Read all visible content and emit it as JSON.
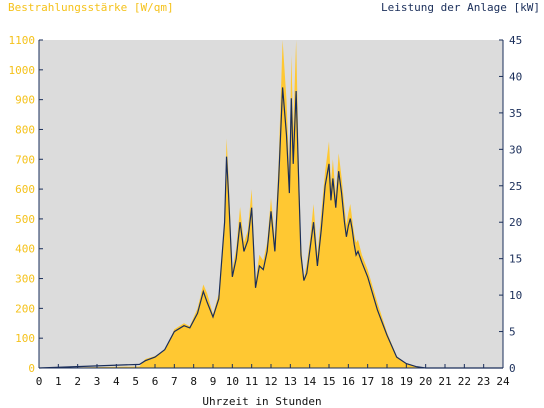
{
  "chart_data": {
    "type": "area",
    "title_left": "Bestrahlungsstärke [W/qm]",
    "title_right": "Leistung der Anlage [kW]",
    "xlabel": "Uhrzeit in Stunden",
    "xlim": [
      0,
      24
    ],
    "ylim_left": [
      0,
      1100
    ],
    "ylim_right": [
      0,
      45
    ],
    "x_ticks": [
      "0",
      "1",
      "2",
      "3",
      "4",
      "5",
      "6",
      "7",
      "8",
      "9",
      "10",
      "11",
      "12",
      "13",
      "14",
      "15",
      "16",
      "17",
      "18",
      "19",
      "20",
      "21",
      "22",
      "23",
      "24"
    ],
    "y_ticks_left": [
      "0",
      "100",
      "200",
      "300",
      "400",
      "500",
      "600",
      "700",
      "800",
      "900",
      "1000",
      "1100"
    ],
    "y_ticks_right": [
      "0",
      "5",
      "10",
      "15",
      "20",
      "25",
      "30",
      "35",
      "40",
      "45"
    ],
    "grid": false,
    "colors": {
      "plot_bg": "#dcdcdc",
      "irradiance_fill": "#ffc832",
      "power_line": "#1a2e5a",
      "left_axis_text": "#f5c21b",
      "right_axis_text": "#1a2e5a",
      "axis": "#1a2e5a"
    },
    "series": [
      {
        "name": "Bestrahlungsstärke [W/qm]",
        "axis": "left",
        "style": "area",
        "x": [
          0,
          5.2,
          5.5,
          6,
          6.5,
          6.8,
          7,
          7.5,
          7.8,
          8.2,
          8.5,
          8.7,
          9,
          9.3,
          9.6,
          9.7,
          9.8,
          10,
          10.2,
          10.4,
          10.6,
          10.8,
          11,
          11.2,
          11.4,
          11.6,
          11.8,
          12,
          12.2,
          12.4,
          12.6,
          12.8,
          12.95,
          13.05,
          13.15,
          13.3,
          13.45,
          13.55,
          13.7,
          13.85,
          14,
          14.2,
          14.4,
          14.6,
          14.8,
          15,
          15.1,
          15.2,
          15.35,
          15.5,
          15.65,
          15.8,
          15.9,
          16,
          16.1,
          16.2,
          16.3,
          16.4,
          16.5,
          16.7,
          17,
          17.5,
          18,
          18.5,
          19,
          19.5,
          20,
          24
        ],
        "values": [
          0,
          5,
          30,
          40,
          60,
          100,
          130,
          150,
          140,
          200,
          280,
          250,
          180,
          250,
          500,
          770,
          650,
          330,
          400,
          540,
          420,
          460,
          600,
          290,
          380,
          360,
          420,
          570,
          430,
          700,
          1100,
          900,
          650,
          1050,
          800,
          1100,
          650,
          420,
          300,
          350,
          420,
          550,
          380,
          520,
          660,
          760,
          620,
          700,
          580,
          720,
          640,
          540,
          480,
          520,
          550,
          500,
          450,
          420,
          430,
          380,
          330,
          220,
          120,
          40,
          15,
          5,
          0,
          0
        ]
      },
      {
        "name": "Leistung der Anlage [kW]",
        "axis": "right",
        "style": "line",
        "x": [
          0,
          5.2,
          5.5,
          6,
          6.5,
          6.8,
          7,
          7.5,
          7.8,
          8.2,
          8.5,
          8.7,
          9,
          9.3,
          9.6,
          9.7,
          9.8,
          10,
          10.2,
          10.4,
          10.6,
          10.8,
          11,
          11.2,
          11.4,
          11.6,
          11.8,
          12,
          12.2,
          12.4,
          12.6,
          12.8,
          12.95,
          13.05,
          13.15,
          13.3,
          13.45,
          13.55,
          13.7,
          13.85,
          14,
          14.2,
          14.4,
          14.6,
          14.8,
          15,
          15.1,
          15.2,
          15.35,
          15.5,
          15.65,
          15.8,
          15.9,
          16,
          16.1,
          16.2,
          16.3,
          16.4,
          16.5,
          16.7,
          17,
          17.5,
          18,
          18.5,
          19,
          19.5,
          20,
          24
        ],
        "values": [
          0,
          0.5,
          1,
          1.5,
          2.5,
          4,
          5,
          5.8,
          5.5,
          7.5,
          10.5,
          9,
          7,
          9.5,
          20,
          29,
          24,
          12.5,
          15,
          20,
          16,
          17.5,
          22,
          11,
          14,
          13.5,
          16,
          21.5,
          16,
          26,
          38.5,
          32,
          24,
          37,
          28,
          38,
          24,
          15.5,
          12,
          13,
          16,
          20,
          14,
          19,
          25,
          28,
          23,
          26,
          22,
          27,
          24,
          20,
          18,
          19.5,
          20.5,
          19,
          17,
          15.5,
          16,
          14.5,
          12.5,
          8,
          4.5,
          1.5,
          0.6,
          0.2,
          0,
          0
        ]
      }
    ]
  }
}
